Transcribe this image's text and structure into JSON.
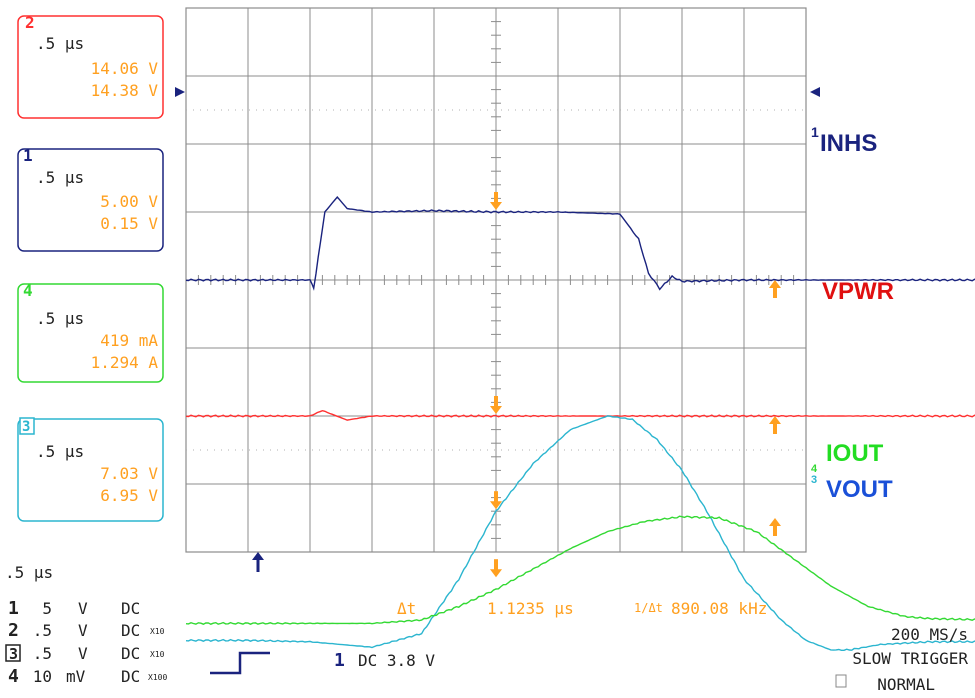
{
  "palette": {
    "ch1": "#1a237e",
    "ch2": "#ff3030",
    "ch3": "#2bb5cf",
    "ch4": "#33d933",
    "cursor": "#ffa020",
    "grid": "#8c8c8c",
    "label_inhs": "#1a237e",
    "label_vpwr": "#e01010",
    "label_iout": "#22dd22",
    "label_vout": "#1a50d8"
  },
  "channel_boxes": [
    {
      "id": "2",
      "timebase": ".5 μs",
      "line1": "14.06 V",
      "line2": "14.38 V",
      "color_key": "ch2"
    },
    {
      "id": "1",
      "timebase": ".5 μs",
      "line1": "5.00 V",
      "line2": "0.15 V",
      "color_key": "ch1"
    },
    {
      "id": "4",
      "timebase": ".5 μs",
      "line1": "419 mA",
      "line2": "1.294 A",
      "color_key": "ch4"
    },
    {
      "id": "3",
      "timebase": ".5 μs",
      "line1": "7.03 V",
      "line2": "6.95 V",
      "color_key": "ch3"
    }
  ],
  "trace_labels": {
    "inhs": "INHS",
    "vpwr": "VPWR",
    "iout": "IOUT",
    "vout": "VOUT"
  },
  "timebase_bottom": ".5 μs",
  "channel_settings": [
    {
      "num": "1",
      "scale": "5",
      "unit": "V",
      "coupling": "DC",
      "probe": ""
    },
    {
      "num": "2",
      "scale": ".5",
      "unit": "V",
      "coupling": "DC",
      "probe": "X10"
    },
    {
      "num": "3",
      "scale": ".5",
      "unit": "V",
      "coupling": "DC",
      "probe": "X10"
    },
    {
      "num": "4",
      "scale": "10",
      "unit": "mV",
      "coupling": "DC",
      "probe": "X100"
    }
  ],
  "cursor_readout": {
    "delta_label": "Δt",
    "delta_value": "1.1235 μs",
    "inv_label": "1/Δt",
    "inv_value": "890.08 kHz"
  },
  "trigger": {
    "source": "1",
    "coupling_level": "DC 3.8 V",
    "sample_rate": "200 MS/s",
    "mode": "SLOW TRIGGER",
    "type": "NORMAL"
  },
  "chart_data": {
    "type": "line",
    "title": "",
    "xlabel": "",
    "ylabel": "",
    "x_unit": "μs",
    "x_divisions": 10,
    "y_divisions": 8,
    "time_per_div_us": 0.5,
    "grid": true,
    "trigger_time_us": 0.5,
    "cursors_us": [
      2.5,
      4.75
    ],
    "series": [
      {
        "name": "INHS",
        "color_key": "ch1",
        "x": [
          0,
          1.0,
          1.03,
          1.12,
          1.22,
          1.3,
          1.5,
          2.0,
          2.5,
          3.0,
          3.5,
          3.65,
          3.73,
          3.82,
          3.92,
          4.0,
          4.5,
          5.0,
          6.0,
          7.0,
          8.0,
          9.0,
          10.0
        ],
        "y": [
          0,
          0,
          -0.12,
          1.0,
          1.22,
          1.05,
          1.0,
          1.02,
          1.0,
          1.0,
          0.97,
          0.6,
          0.1,
          -0.13,
          0.05,
          -0.02,
          0.0,
          0.0,
          0.0,
          0.0,
          0.0,
          0.0,
          0.0
        ]
      },
      {
        "name": "VPWR",
        "color_key": "ch2",
        "x": [
          0,
          1.0,
          1.1,
          1.3,
          1.5,
          2.0,
          2.5,
          3.0,
          3.5,
          4.0,
          5.0,
          6.0,
          7.0,
          8.0,
          9.0,
          10.0
        ],
        "y": [
          -2.0,
          -2.0,
          -1.92,
          -2.06,
          -2.0,
          -2.0,
          -2.0,
          -2.0,
          -2.0,
          -2.0,
          -2.0,
          -2.0,
          -2.0,
          -2.0,
          -2.0,
          -2.0
        ]
      },
      {
        "name": "VOUT",
        "color_key": "ch3",
        "x": [
          0,
          0.5,
          1.0,
          1.5,
          1.7,
          1.9,
          2.2,
          2.5,
          2.8,
          3.1,
          3.4,
          3.6,
          3.8,
          4.0,
          4.2,
          4.5,
          4.8,
          5.0,
          5.2,
          5.35,
          5.6,
          6.0,
          7.0,
          8.0,
          9.0,
          10.0
        ],
        "y": [
          -5.3,
          -5.3,
          -5.32,
          -5.4,
          -5.3,
          -5.2,
          -4.4,
          -3.4,
          -2.7,
          -2.2,
          -2.0,
          -2.05,
          -2.35,
          -2.8,
          -3.4,
          -4.4,
          -5.0,
          -5.3,
          -5.44,
          -5.44,
          -5.36,
          -5.32,
          -5.32,
          -5.31,
          -5.3,
          -5.3
        ]
      },
      {
        "name": "IOUT",
        "color_key": "ch4",
        "x": [
          0,
          1.0,
          1.5,
          1.9,
          2.2,
          2.5,
          2.8,
          3.1,
          3.4,
          3.7,
          4.0,
          4.3,
          4.6,
          4.9,
          5.2,
          5.5,
          5.8,
          6.0,
          6.5,
          7.0,
          8.0,
          9.0,
          10.0
        ],
        "y": [
          -5.05,
          -5.05,
          -5.05,
          -5.0,
          -4.8,
          -4.55,
          -4.25,
          -3.95,
          -3.7,
          -3.55,
          -3.48,
          -3.5,
          -3.7,
          -4.1,
          -4.5,
          -4.8,
          -4.95,
          -4.98,
          -5.0,
          -5.02,
          -5.02,
          -5.02,
          -5.02
        ]
      }
    ]
  }
}
